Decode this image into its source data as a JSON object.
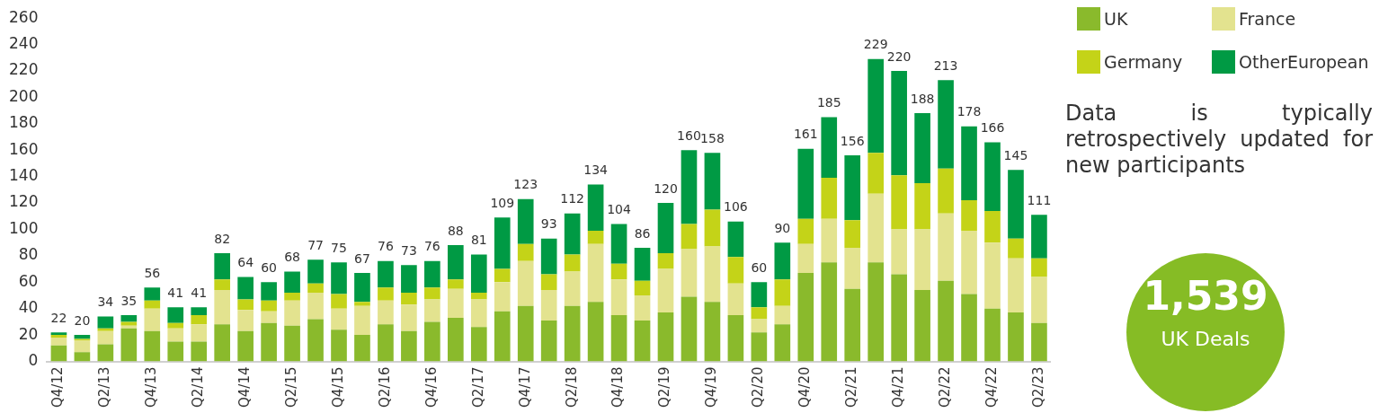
{
  "chart_data": {
    "type": "bar",
    "stacked": true,
    "legend": "top right",
    "tick_labels": "xy",
    "categories": [
      "Q4/12",
      null,
      "Q2/13",
      null,
      "Q4/13",
      null,
      "Q2/14",
      null,
      "Q4/14",
      null,
      "Q2/15",
      null,
      "Q4/15",
      null,
      "Q2/16",
      null,
      "Q4/16",
      null,
      "Q2/17",
      null,
      "Q4/17",
      null,
      "Q2/18",
      null,
      "Q4/18",
      null,
      "Q2/19",
      null,
      "Q4/19",
      null,
      "Q2/20",
      null,
      "Q4/20",
      null,
      "Q2/21",
      null,
      "Q4/21",
      null,
      "Q2/22",
      null,
      "Q4/22",
      null,
      "Q2/23"
    ],
    "series": [
      {
        "name": "UK",
        "color": "#8aba2c",
        "values": [
          12,
          7,
          13,
          25,
          23,
          15,
          15,
          28,
          23,
          29,
          27,
          32,
          24,
          20,
          28,
          23,
          30,
          33,
          26,
          38,
          42,
          31,
          42,
          45,
          35,
          31,
          37,
          49,
          45,
          35,
          22,
          28,
          67,
          75,
          55,
          75,
          66,
          54,
          61,
          51,
          40,
          37,
          29
        ]
      },
      {
        "name": "France",
        "color": "#e3e38f",
        "values": [
          6,
          9,
          10,
          2,
          17,
          10,
          13,
          26,
          16,
          9,
          19,
          20,
          16,
          22,
          18,
          20,
          17,
          22,
          21,
          22,
          34,
          23,
          26,
          44,
          27,
          19,
          33,
          36,
          42,
          24,
          10,
          14,
          22,
          33,
          31,
          52,
          34,
          46,
          51,
          48,
          50,
          41,
          35
        ]
      },
      {
        "name": "Germany",
        "color": "#c4d318",
        "values": [
          2,
          1,
          2,
          3,
          6,
          4,
          7,
          8,
          8,
          8,
          6,
          7,
          11,
          3,
          10,
          9,
          9,
          7,
          5,
          10,
          13,
          12,
          13,
          10,
          12,
          11,
          12,
          19,
          28,
          20,
          9,
          20,
          19,
          31,
          21,
          31,
          41,
          35,
          34,
          23,
          24,
          15,
          14
        ]
      },
      {
        "name": "OtherEuropean",
        "color": "#009a44",
        "values": [
          2,
          3,
          9,
          5,
          10,
          12,
          6,
          20,
          17,
          14,
          16,
          18,
          24,
          22,
          20,
          21,
          20,
          26,
          29,
          39,
          34,
          27,
          31,
          35,
          30,
          25,
          38,
          56,
          43,
          27,
          19,
          28,
          53,
          46,
          49,
          71,
          79,
          53,
          67,
          56,
          52,
          52,
          33
        ]
      }
    ],
    "totals": [
      "22",
      "20",
      "34",
      "35",
      "56",
      "41",
      "41",
      "82",
      "64",
      "60",
      "68",
      "77",
      "75",
      "67",
      "76",
      "73",
      "76",
      "88",
      "81",
      "109",
      "123",
      "93",
      "112",
      "134",
      "104",
      "86",
      "120",
      "160",
      "158",
      "106",
      "60",
      "90",
      "161",
      "185",
      "156",
      "229",
      "220",
      "188",
      "213",
      "178",
      "166",
      "145",
      "111"
    ],
    "ylim": [
      0,
      260
    ],
    "yticks": [
      0,
      20,
      40,
      60,
      80,
      100,
      120,
      140,
      160,
      180,
      200,
      220,
      240,
      260
    ],
    "grid": false,
    "annotations": [
      "Data is typically retrospectively updated for new participants",
      "1,539",
      "UK Deals"
    ]
  }
}
